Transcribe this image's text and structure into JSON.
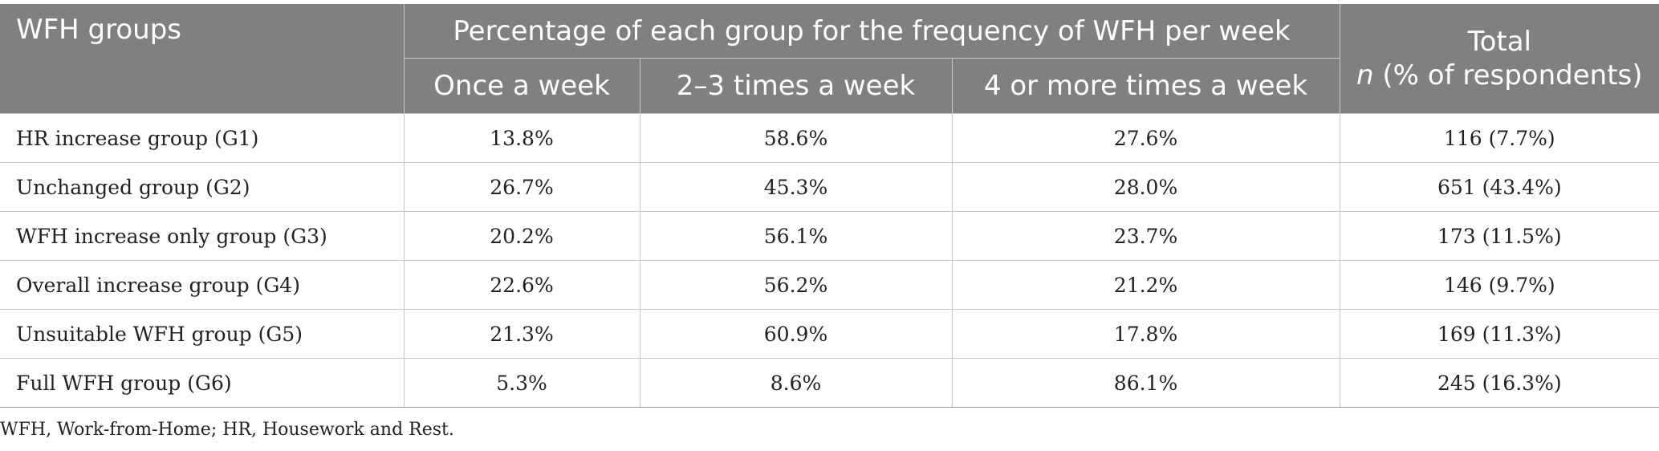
{
  "table": {
    "header": {
      "groups_label": "WFH groups",
      "span_label": "Percentage of each group for the frequency of WFH per week",
      "sub_columns": [
        "Once a week",
        "2–3 times a week",
        "4 or more times a week"
      ],
      "total_label_line1": "Total",
      "total_label_n": "n",
      "total_label_rest": " (% of respondents)"
    },
    "rows": [
      {
        "group": "HR increase group (G1)",
        "once": "13.8%",
        "two_three": "58.6%",
        "four_plus": "27.6%",
        "total": "116 (7.7%)"
      },
      {
        "group": "Unchanged group (G2)",
        "once": "26.7%",
        "two_three": "45.3%",
        "four_plus": "28.0%",
        "total": "651 (43.4%)"
      },
      {
        "group": "WFH increase only group (G3)",
        "once": "20.2%",
        "two_three": "56.1%",
        "four_plus": "23.7%",
        "total": "173 (11.5%)"
      },
      {
        "group": "Overall increase group (G4)",
        "once": "22.6%",
        "two_three": "56.2%",
        "four_plus": "21.2%",
        "total": "146 (9.7%)"
      },
      {
        "group": "Unsuitable WFH group (G5)",
        "once": "21.3%",
        "two_three": "60.9%",
        "four_plus": "17.8%",
        "total": "169 (11.3%)"
      },
      {
        "group": "Full WFH group (G6)",
        "once": "5.3%",
        "two_three": "8.6%",
        "four_plus": "86.1%",
        "total": "245 (16.3%)"
      }
    ]
  },
  "footnote": "WFH, Work-from-Home; HR, Housework and Rest.",
  "colors": {
    "header_bg": "#808080",
    "header_text": "#ffffff",
    "grid_line": "#c7c7c7"
  }
}
